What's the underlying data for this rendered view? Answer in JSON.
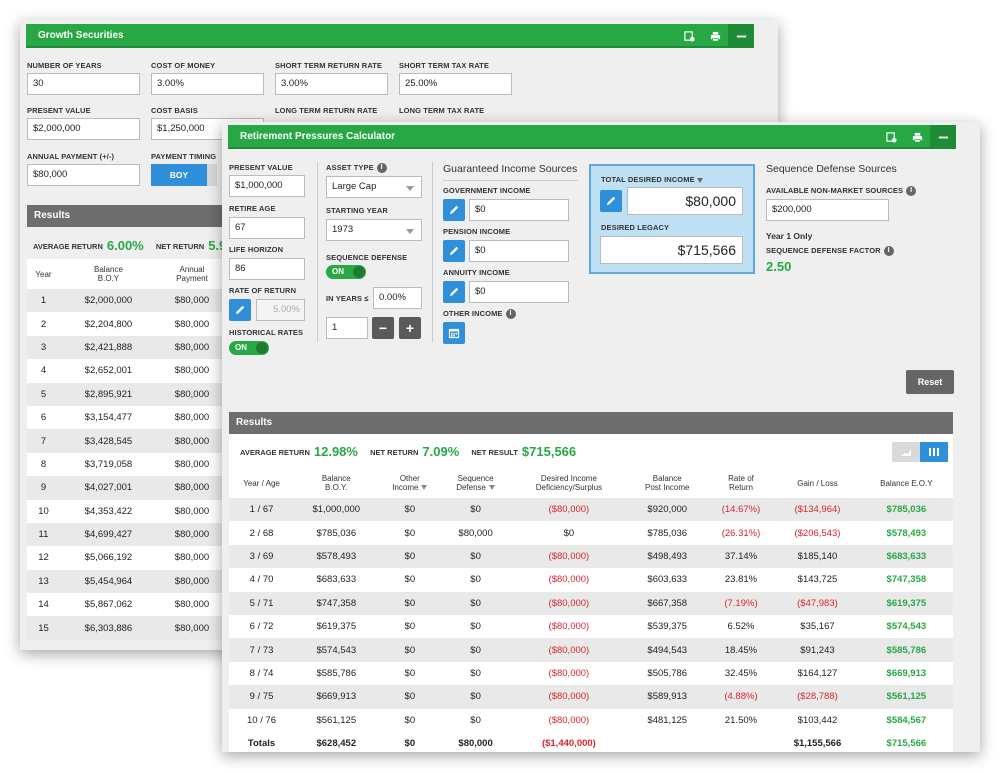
{
  "back": {
    "title": "Growth Securities",
    "fields": {
      "years_label": "NUMBER OF YEARS",
      "years": "30",
      "cost_money_label": "COST OF MONEY",
      "cost_money": "3.00%",
      "st_return_label": "SHORT TERM RETURN RATE",
      "st_return": "3.00%",
      "st_tax_label": "SHORT TERM TAX RATE",
      "st_tax": "25.00%",
      "pv_label": "PRESENT VALUE",
      "pv": "$2,000,000",
      "cost_basis_label": "COST BASIS",
      "cost_basis": "$1,250,000",
      "lt_return_label": "LONG TERM RETURN RATE",
      "lt_tax_label": "LONG TERM TAX RATE",
      "annual_payment_label": "ANNUAL PAYMENT (+/-)",
      "annual_payment": "$80,000",
      "payment_timing_label": "PAYMENT TIMING",
      "payment_timing": "BOY"
    },
    "results_label": "Results",
    "avg_return_label": "AVERAGE RETURN",
    "avg_return": "6.00%",
    "net_return_label": "NET RETURN",
    "net_return": "5.90",
    "columns": [
      "Year",
      "Balance\nB.O.Y",
      "Annual\nPayment"
    ],
    "rows": [
      [
        "1",
        "$2,000,000",
        "$80,000"
      ],
      [
        "2",
        "$2,204,800",
        "$80,000"
      ],
      [
        "3",
        "$2,421,888",
        "$80,000"
      ],
      [
        "4",
        "$2,652,001",
        "$80,000"
      ],
      [
        "5",
        "$2,895,921",
        "$80,000"
      ],
      [
        "6",
        "$3,154,477",
        "$80,000"
      ],
      [
        "7",
        "$3,428,545",
        "$80,000"
      ],
      [
        "8",
        "$3,719,058",
        "$80,000"
      ],
      [
        "9",
        "$4,027,001",
        "$80,000"
      ],
      [
        "10",
        "$4,353,422",
        "$80,000"
      ],
      [
        "11",
        "$4,699,427",
        "$80,000"
      ],
      [
        "12",
        "$5,066,192",
        "$80,000"
      ],
      [
        "13",
        "$5,454,964",
        "$80,000"
      ],
      [
        "14",
        "$5,867,062",
        "$80,000"
      ],
      [
        "15",
        "$6,303,886",
        "$80,000"
      ]
    ]
  },
  "front": {
    "title": "Retirement Pressures Calculator",
    "pv_label": "PRESENT VALUE",
    "pv": "$1,000,000",
    "retire_age_label": "RETIRE AGE",
    "retire_age": "67",
    "life_horizon_label": "LIFE HORIZON",
    "life_horizon": "86",
    "ror_label": "RATE OF RETURN",
    "ror": "5.00%",
    "hist_rates_label": "HISTORICAL RATES",
    "hist_rates": "ON",
    "asset_type_label": "ASSET TYPE",
    "asset_type": "Large Cap",
    "start_year_label": "STARTING YEAR",
    "start_year": "1973",
    "seq_def_label": "SEQUENCE DEFENSE",
    "seq_def": "ON",
    "in_years_label": "IN YEARS ≤",
    "in_years": "0.00%",
    "stepper_value": "1",
    "gis_title": "Guaranteed Income Sources",
    "gov_label": "GOVERNMENT INCOME",
    "gov": "$0",
    "pension_label": "PENSION INCOME",
    "pension": "$0",
    "annuity_label": "ANNUITY INCOME",
    "annuity": "$0",
    "other_label": "OTHER INCOME",
    "tdi_label": "TOTAL DESIRED INCOME",
    "tdi": "$80,000",
    "legacy_label": "DESIRED LEGACY",
    "legacy": "$715,566",
    "sds_title": "Sequence Defense Sources",
    "anm_label": "AVAILABLE NON-MARKET SOURCES",
    "anm": "$200,000",
    "year1_label": "Year 1 Only",
    "sdf_label": "SEQUENCE DEFENSE FACTOR",
    "sdf": "2.50",
    "reset_label": "Reset",
    "results_label": "Results",
    "avg_return_label": "AVERAGE RETURN",
    "avg_return": "12.98%",
    "net_return_label": "NET RETURN",
    "net_return": "7.09%",
    "net_result_label": "NET RESULT",
    "net_result": "$715,566",
    "columns": [
      "Year / Age",
      "Balance\nB.O.Y.",
      "Other\nIncome",
      "Sequence\nDefense",
      "Desired Income\nDeficiency/Surplus",
      "Balance\nPost Income",
      "Rate of\nReturn",
      "Gain / Loss",
      "Balance E.O.Y"
    ],
    "rows": [
      [
        "1 / 67",
        "$1,000,000",
        "$0",
        "$0",
        "($80,000)",
        "$920,000",
        "(14.67%)",
        "($134,964)",
        "$785,036"
      ],
      [
        "2 / 68",
        "$785,036",
        "$0",
        "$80,000",
        "$0",
        "$785,036",
        "(26.31%)",
        "($206,543)",
        "$578,493"
      ],
      [
        "3 / 69",
        "$578,493",
        "$0",
        "$0",
        "($80,000)",
        "$498,493",
        "37.14%",
        "$185,140",
        "$683,633"
      ],
      [
        "4 / 70",
        "$683,633",
        "$0",
        "$0",
        "($80,000)",
        "$603,633",
        "23.81%",
        "$143,725",
        "$747,358"
      ],
      [
        "5 / 71",
        "$747,358",
        "$0",
        "$0",
        "($80,000)",
        "$667,358",
        "(7.19%)",
        "($47,983)",
        "$619,375"
      ],
      [
        "6 / 72",
        "$619,375",
        "$0",
        "$0",
        "($80,000)",
        "$539,375",
        "6.52%",
        "$35,167",
        "$574,543"
      ],
      [
        "7 / 73",
        "$574,543",
        "$0",
        "$0",
        "($80,000)",
        "$494,543",
        "18.45%",
        "$91,243",
        "$585,786"
      ],
      [
        "8 / 74",
        "$585,786",
        "$0",
        "$0",
        "($80,000)",
        "$505,786",
        "32.45%",
        "$164,127",
        "$669,913"
      ],
      [
        "9 / 75",
        "$669,913",
        "$0",
        "$0",
        "($80,000)",
        "$589,913",
        "(4.88%)",
        "($28,788)",
        "$561,125"
      ],
      [
        "10 / 76",
        "$561,125",
        "$0",
        "$0",
        "($80,000)",
        "$481,125",
        "21.50%",
        "$103,442",
        "$584,567"
      ]
    ],
    "totals": [
      "Totals",
      "$628,452",
      "$0",
      "$80,000",
      "($1,440,000)",
      "",
      "",
      "$1,155,566",
      "$715,566"
    ]
  },
  "colors": {
    "green": "#27a844",
    "blue": "#2f8fd8",
    "red": "#d9262c"
  }
}
